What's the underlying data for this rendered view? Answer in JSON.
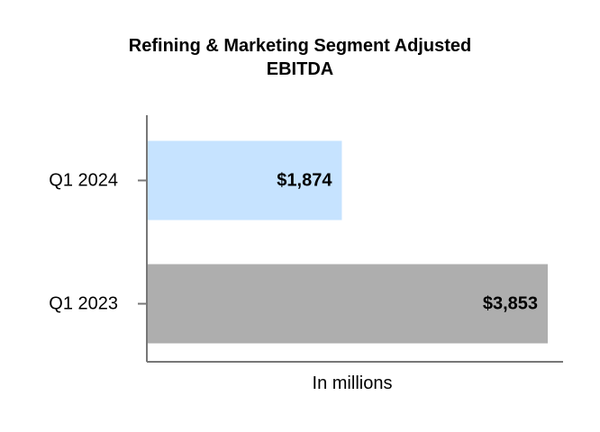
{
  "chart_data": {
    "type": "bar",
    "orientation": "horizontal",
    "title_lines": [
      "Refining & Marketing Segment Adjusted",
      "EBITDA"
    ],
    "categories": [
      "Q1 2024",
      "Q1 2023"
    ],
    "values": [
      1874,
      3853
    ],
    "value_labels": [
      "$1,874",
      "$3,853"
    ],
    "bar_colors": [
      "#C6E3FF",
      "#AEAEAE"
    ],
    "xlabel": "In millions",
    "xlim": [
      0,
      4000
    ],
    "grid": false
  }
}
